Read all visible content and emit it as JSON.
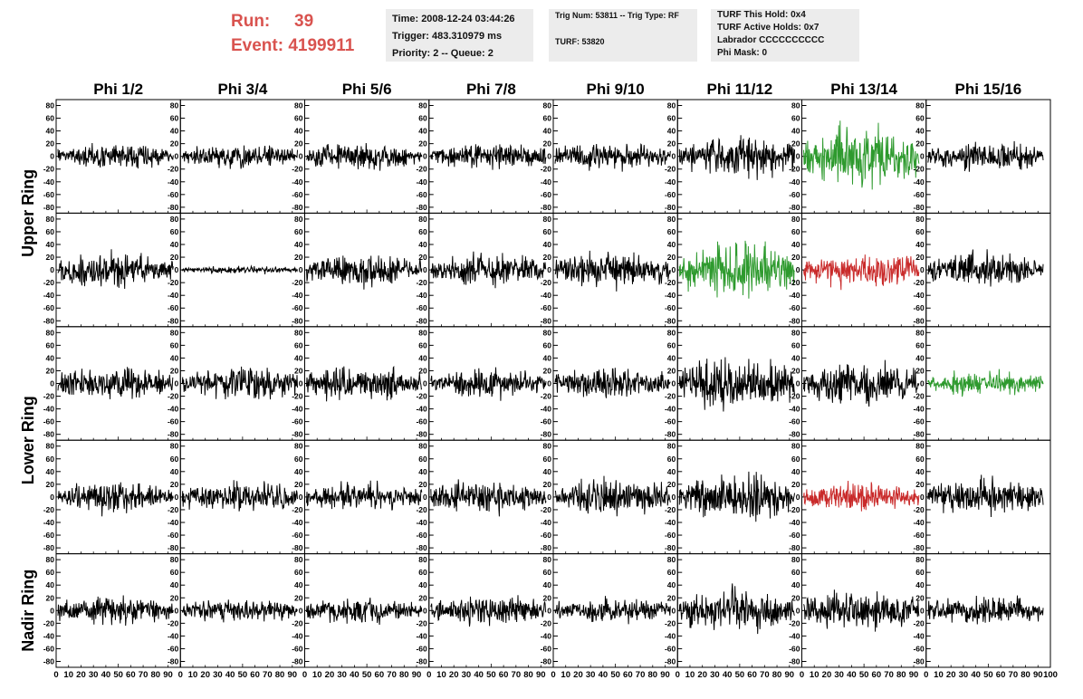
{
  "header": {
    "run_label": "Run:",
    "run_value": "39",
    "event_label": "Event:",
    "event_value": "4199911",
    "box1": {
      "time": "Time: 2008-12-24 03:44:26",
      "trigger": "Trigger: 483.310979 ms",
      "priority": "Priority: 2 -- Queue: 2"
    },
    "box2": {
      "trig": "Trig Num: 53811 -- Trig Type: RF",
      "turf": "TURF: 53820"
    },
    "box3": {
      "this_hold": "TURF This Hold: 0x4",
      "active_holds": "TURF Active Holds: 0x7",
      "labrador": "Labrador CCCCCCCCCC",
      "phi_mask": "Phi Mask: 0"
    }
  },
  "chart_data": {
    "type": "line",
    "columns": [
      "Phi 1/2",
      "Phi 3/4",
      "Phi 5/6",
      "Phi 7/8",
      "Phi 9/10",
      "Phi 11/12",
      "Phi 13/14",
      "Phi 15/16"
    ],
    "ring_labels": [
      "Upper Ring",
      "Lower Ring",
      "Nadir Ring"
    ],
    "x_ticks": [
      "0",
      "10",
      "20",
      "30",
      "40",
      "50",
      "60",
      "70",
      "80",
      "90",
      "100"
    ],
    "y_ticks": [
      "80",
      "60",
      "40",
      "20",
      "0",
      "-20",
      "-40",
      "-60",
      "-80"
    ],
    "xlim": [
      0,
      100
    ],
    "ylim": [
      -85,
      85
    ],
    "samples_per_trace": 260,
    "colors": {
      "black": "#000000",
      "green": "#2e9a2e",
      "red": "#c92a2a"
    },
    "rows": [
      {
        "ring": "Upper Ring",
        "traces": [
          {
            "amp": 13,
            "color": "black"
          },
          {
            "amp": 12,
            "color": "black"
          },
          {
            "amp": 15,
            "color": "black"
          },
          {
            "amp": 14,
            "color": "black"
          },
          {
            "amp": 14,
            "color": "black"
          },
          {
            "amp": 21,
            "color": "black"
          },
          {
            "amp": 32,
            "color": "green"
          },
          {
            "amp": 14,
            "color": "black"
          }
        ]
      },
      {
        "ring": "Upper Ring",
        "traces": [
          {
            "amp": 18,
            "color": "black"
          },
          {
            "amp": 4,
            "color": "black"
          },
          {
            "amp": 17,
            "color": "black"
          },
          {
            "amp": 16,
            "color": "black"
          },
          {
            "amp": 18,
            "color": "black"
          },
          {
            "amp": 30,
            "color": "green"
          },
          {
            "amp": 18,
            "color": "red"
          },
          {
            "amp": 17,
            "color": "black"
          }
        ]
      },
      {
        "ring": "Lower Ring",
        "traces": [
          {
            "amp": 18,
            "color": "black"
          },
          {
            "amp": 17,
            "color": "black"
          },
          {
            "amp": 17,
            "color": "black"
          },
          {
            "amp": 14,
            "color": "black"
          },
          {
            "amp": 16,
            "color": "black"
          },
          {
            "amp": 26,
            "color": "black"
          },
          {
            "amp": 24,
            "color": "black"
          },
          {
            "amp": 12,
            "color": "green"
          }
        ]
      },
      {
        "ring": "Lower Ring",
        "traces": [
          {
            "amp": 16,
            "color": "black"
          },
          {
            "amp": 16,
            "color": "black"
          },
          {
            "amp": 15,
            "color": "black"
          },
          {
            "amp": 17,
            "color": "black"
          },
          {
            "amp": 19,
            "color": "black"
          },
          {
            "amp": 24,
            "color": "black"
          },
          {
            "amp": 16,
            "color": "red"
          },
          {
            "amp": 18,
            "color": "black"
          }
        ]
      },
      {
        "ring": "Nadir Ring",
        "traces": [
          {
            "amp": 15,
            "color": "black"
          },
          {
            "amp": 12,
            "color": "black"
          },
          {
            "amp": 13,
            "color": "black"
          },
          {
            "amp": 15,
            "color": "black"
          },
          {
            "amp": 13,
            "color": "black"
          },
          {
            "amp": 22,
            "color": "black"
          },
          {
            "amp": 20,
            "color": "black"
          },
          {
            "amp": 15,
            "color": "black"
          }
        ]
      }
    ]
  }
}
